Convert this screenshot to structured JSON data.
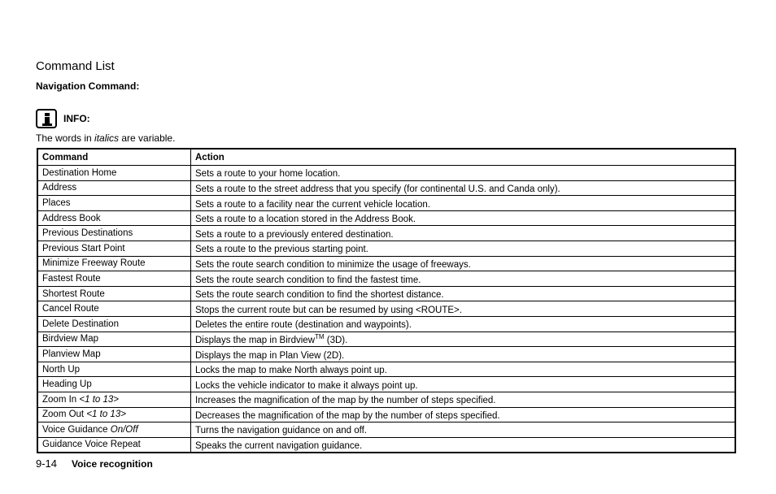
{
  "section_title": "Command List",
  "nav_heading": "Navigation Command:",
  "info": {
    "icon": "info-icon",
    "label": "INFO:",
    "text_before": "The words in ",
    "text_italic": "italics",
    "text_after": " are variable."
  },
  "table": {
    "headers": [
      "Command",
      "Action"
    ],
    "rows": [
      {
        "command": "Destination Home",
        "command_var": "",
        "action": "Sets a route to your home location.",
        "action_sup": "",
        "action_after": ""
      },
      {
        "command": "Address",
        "command_var": "",
        "action": "Sets a route to the street address that you specify (for continental U.S. and Canda only).",
        "action_sup": "",
        "action_after": ""
      },
      {
        "command": "Places",
        "command_var": "",
        "action": "Sets a route to a facility near the current vehicle location.",
        "action_sup": "",
        "action_after": ""
      },
      {
        "command": "Address Book",
        "command_var": "",
        "action": "Sets a route to a location stored in the Address Book.",
        "action_sup": "",
        "action_after": ""
      },
      {
        "command": "Previous Destinations",
        "command_var": "",
        "action": "Sets a route to a previously entered destination.",
        "action_sup": "",
        "action_after": ""
      },
      {
        "command": "Previous Start Point",
        "command_var": "",
        "action": "Sets a route to the previous starting point.",
        "action_sup": "",
        "action_after": ""
      },
      {
        "command": "Minimize Freeway Route",
        "command_var": "",
        "action": "Sets the route search condition to minimize the usage of freeways.",
        "action_sup": "",
        "action_after": ""
      },
      {
        "command": "Fastest Route",
        "command_var": "",
        "action": "Sets the route search condition to find the fastest time.",
        "action_sup": "",
        "action_after": ""
      },
      {
        "command": "Shortest Route",
        "command_var": "",
        "action": "Sets the route search condition to find the shortest distance.",
        "action_sup": "",
        "action_after": ""
      },
      {
        "command": "Cancel Route",
        "command_var": "",
        "action": "Stops the current route but can be resumed by using <ROUTE>.",
        "action_sup": "",
        "action_after": ""
      },
      {
        "command": "Delete Destination",
        "command_var": "",
        "action": "Deletes the entire route (destination and waypoints).",
        "action_sup": "",
        "action_after": ""
      },
      {
        "command": "Birdview Map",
        "command_var": "",
        "action": "Displays the map in Birdview",
        "action_sup": "TM",
        "action_after": " (3D)."
      },
      {
        "command": "Planview Map",
        "command_var": "",
        "action": "Displays the map in Plan View (2D).",
        "action_sup": "",
        "action_after": ""
      },
      {
        "command": "North Up",
        "command_var": "",
        "action": "Locks the map to make North always point up.",
        "action_sup": "",
        "action_after": ""
      },
      {
        "command": "Heading Up",
        "command_var": "",
        "action": "Locks the vehicle indicator to make it always point up.",
        "action_sup": "",
        "action_after": ""
      },
      {
        "command": "Zoom In ",
        "command_var": "<1 to 13>",
        "action": "Increases the magnification of the map by the number of steps specified.",
        "action_sup": "",
        "action_after": ""
      },
      {
        "command": "Zoom Out ",
        "command_var": "<1 to 13>",
        "action": "Decreases the magnification of the map by the number of steps specified.",
        "action_sup": "",
        "action_after": ""
      },
      {
        "command": "Voice Guidance ",
        "command_var": "On/Off",
        "action": "Turns the navigation guidance on and off.",
        "action_sup": "",
        "action_after": ""
      },
      {
        "command": "Guidance Voice Repeat",
        "command_var": "",
        "action": "Speaks the current navigation guidance.",
        "action_sup": "",
        "action_after": ""
      }
    ]
  },
  "footer": {
    "page_number": "9-14",
    "section": "Voice recognition"
  }
}
